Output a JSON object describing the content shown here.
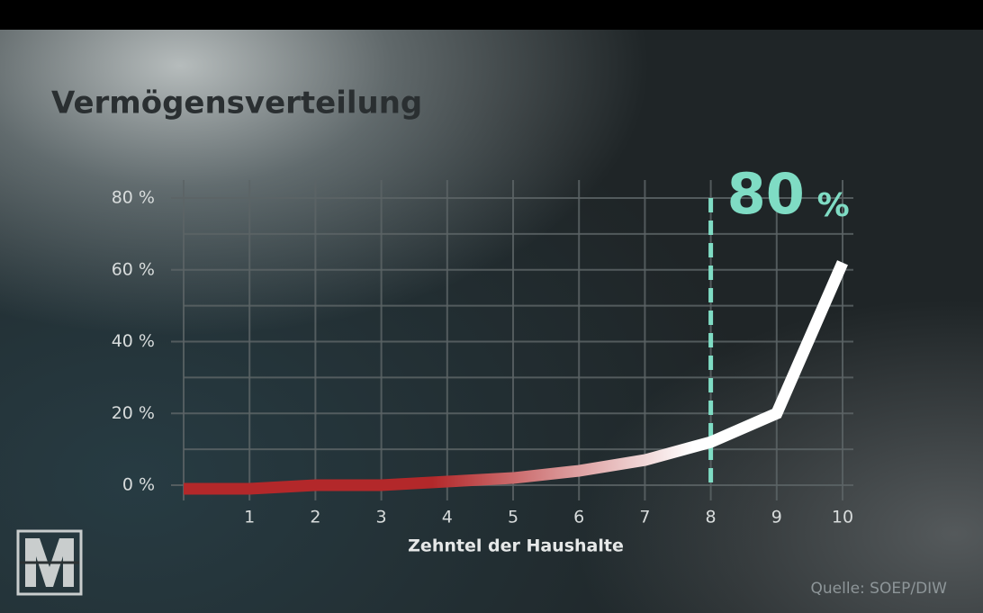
{
  "chart_data": {
    "type": "line",
    "title": "Vermögensverteilung",
    "x_label": "Zehntel der Haushalte",
    "source": "Quelle: SOEP/DIW",
    "x": [
      0,
      1,
      2,
      3,
      4,
      5,
      6,
      7,
      8,
      9,
      10
    ],
    "series": [
      {
        "color_start": "#b3282a",
        "color_end": "#ffffff",
        "values": [
          -1,
          -1,
          0,
          0,
          1,
          2,
          4,
          7,
          12,
          20,
          62
        ]
      }
    ],
    "xlim": [
      0,
      10
    ],
    "xticks": [
      1,
      2,
      3,
      4,
      5,
      6,
      7,
      8,
      9,
      10
    ],
    "ylim": [
      0,
      80
    ],
    "yticks": [
      {
        "value": 0,
        "label": "0 %"
      },
      {
        "value": 20,
        "label": "20 %"
      },
      {
        "value": 40,
        "label": "40 %"
      },
      {
        "value": 60,
        "label": "60 %"
      },
      {
        "value": 80,
        "label": "80 %"
      }
    ],
    "minor_yticks": [
      10,
      30,
      50,
      70
    ],
    "grid": true,
    "annotation": {
      "x": 8,
      "value": "80",
      "unit": "%",
      "color": "#7fdcc4"
    }
  }
}
